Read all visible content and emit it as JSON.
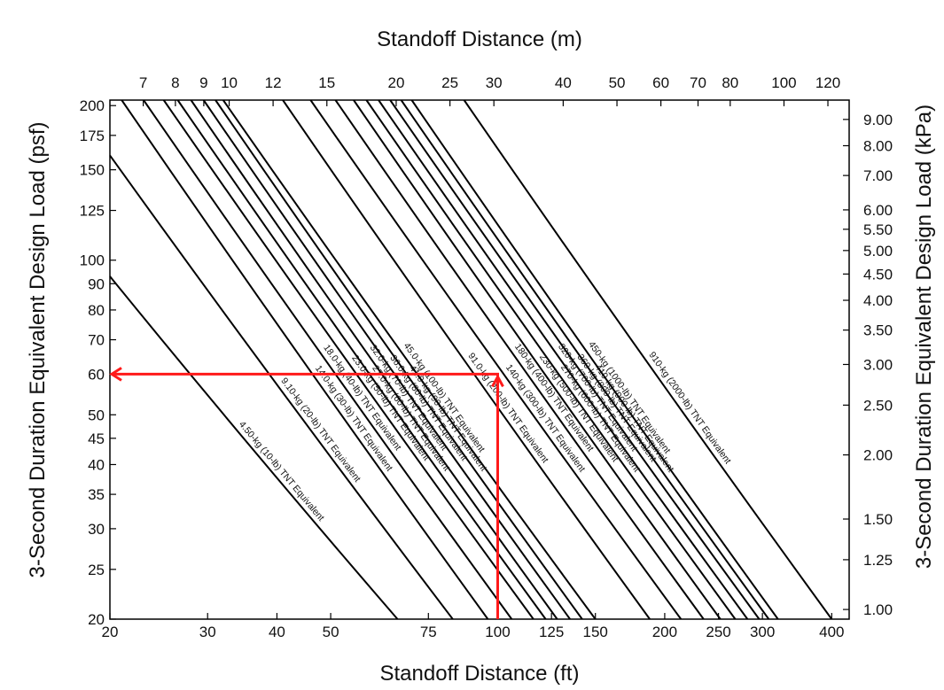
{
  "chart_data": {
    "type": "line",
    "title": "",
    "xlabel": "Standoff Distance (ft)",
    "xlabel_top": "Standoff Distance (m)",
    "ylabel": "3-Second Duration Equivalent Design Load (psf)",
    "ylabel_right": "3-Second Duration Equivalent Design Load (kPa)",
    "x_scale": "log",
    "y_scale": "log",
    "xlim": [
      20,
      430
    ],
    "ylim": [
      20,
      205
    ],
    "grid": false,
    "x_ticks": [
      20,
      30,
      40,
      50,
      75,
      100,
      125,
      150,
      200,
      250,
      300,
      400
    ],
    "x_ticks_top": [
      7,
      8,
      9,
      10,
      12,
      15,
      20,
      25,
      30,
      40,
      50,
      60,
      70,
      80,
      100,
      120
    ],
    "y_ticks": [
      20,
      25,
      30,
      35,
      40,
      45,
      50,
      60,
      70,
      80,
      90,
      100,
      125,
      150,
      175,
      200
    ],
    "y_ticks_right": [
      "1.00",
      "1.25",
      "1.50",
      "2.00",
      "2.50",
      "3.00",
      "3.50",
      "4.00",
      "4.50",
      "5.00",
      "5.50",
      "6.00",
      "7.00",
      "8.00",
      "9.00"
    ],
    "series": [
      {
        "name": "4.50-kg (10-lb) TNT Equivalent",
        "x": [
          20,
          66
        ],
        "y": [
          93,
          20
        ]
      },
      {
        "name": "9.10-kg (20-lb) TNT Equivalent",
        "x": [
          20,
          83
        ],
        "y": [
          160,
          20
        ]
      },
      {
        "name": "14.0-kg (30-lb) TNT Equivalent",
        "x": [
          21,
          96
        ],
        "y": [
          205,
          20
        ]
      },
      {
        "name": "18.0-kg (40-lb) TNT Equivalent",
        "x": [
          23,
          106
        ],
        "y": [
          205,
          20
        ]
      },
      {
        "name": "23.0-kg (50-lb) TNT Equivalent",
        "x": [
          25,
          116
        ],
        "y": [
          205,
          20
        ]
      },
      {
        "name": "27.0-kg (60-lb) TNT Equivalent",
        "x": [
          26.5,
          122
        ],
        "y": [
          205,
          20
        ]
      },
      {
        "name": "32.0-kg (70-lb) TNT Equivalent",
        "x": [
          28,
          128
        ],
        "y": [
          205,
          20
        ]
      },
      {
        "name": "36.0-kg (80-lb) TNT Equivalent",
        "x": [
          29.5,
          135
        ],
        "y": [
          205,
          20
        ]
      },
      {
        "name": "41.0-kg (90-lb) TNT Equivalent",
        "x": [
          31,
          142
        ],
        "y": [
          205,
          20
        ]
      },
      {
        "name": "45.0-kg (100-lb) TNT Equivalent",
        "x": [
          32,
          150
        ],
        "y": [
          205,
          20
        ]
      },
      {
        "name": "91.0-kg (200-lb) TNT Equivalent",
        "x": [
          41,
          188
        ],
        "y": [
          205,
          20
        ]
      },
      {
        "name": "140-kg (300-lb) TNT Equivalent",
        "x": [
          46,
          214
        ],
        "y": [
          205,
          20
        ]
      },
      {
        "name": "180-kg (400-lb) TNT Equivalent",
        "x": [
          51,
          235
        ],
        "y": [
          205,
          20
        ]
      },
      {
        "name": "230-kg (500-lb) TNT Equivalent",
        "x": [
          55,
          252
        ],
        "y": [
          205,
          20
        ]
      },
      {
        "name": "270-kg (600-lb) TNT Equivalent",
        "x": [
          58,
          268
        ],
        "y": [
          205,
          20
        ]
      },
      {
        "name": "320-kg (700-lb) TNT Equivalent",
        "x": [
          61,
          282
        ],
        "y": [
          205,
          20
        ]
      },
      {
        "name": "360-kg (800-lb) TNT Equivalent",
        "x": [
          64,
          296
        ],
        "y": [
          205,
          20
        ]
      },
      {
        "name": "410-kg (900-lb) TNT Equivalent",
        "x": [
          67,
          308
        ],
        "y": [
          205,
          20
        ]
      },
      {
        "name": "450-kg (1000-lb) TNT Equivalent",
        "x": [
          70,
          320
        ],
        "y": [
          205,
          20
        ]
      },
      {
        "name": "910-kg (2000-lb) TNT Equivalent",
        "x": [
          87,
          400
        ],
        "y": [
          205,
          20
        ]
      }
    ],
    "annotations": [
      {
        "type": "arrow",
        "color": "#ff1a1a",
        "path_x": [
          100,
          100,
          20
        ],
        "path_y": [
          20,
          60,
          60
        ]
      }
    ]
  }
}
